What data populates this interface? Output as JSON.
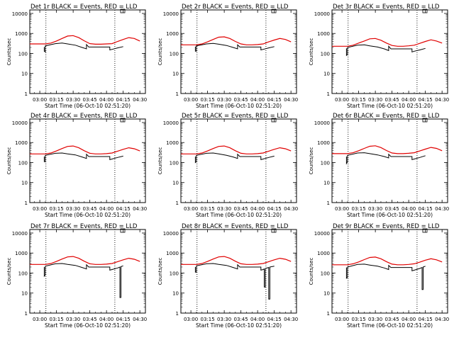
{
  "figure": {
    "xlabel": "Start Time (06-Oct-10 02:51:20)",
    "ylabel": "Counts/sec",
    "x_tick_labels": [
      "03:00",
      "03:15",
      "03:30",
      "03:45",
      "04:00",
      "04:15",
      "04:30"
    ],
    "y_tick_labels": [
      "1",
      "10",
      "100",
      "1000",
      "10000"
    ],
    "colors": {
      "events": "#000000",
      "lld": "#e00000",
      "axes": "#000000"
    }
  },
  "chart_data": [
    {
      "type": "line",
      "title": "Det 1r BLACK = Events, RED = LLD",
      "x_unit": "minutes after 03:00 (start 02:51:20)",
      "xlim": [
        -9,
        95
      ],
      "ylim": [
        1,
        15000
      ],
      "y_scale": "log",
      "vlines": [
        5.5,
        67.5
      ],
      "series": [
        {
          "name": "Events",
          "color": "#000000",
          "x": [
            -9,
            4,
            4,
            5,
            5,
            14,
            20,
            25,
            32,
            38,
            42,
            42,
            44,
            48,
            52,
            58,
            63,
            63,
            65,
            70,
            75
          ],
          "y": [
            null,
            210,
            130,
            120,
            240,
            310,
            330,
            300,
            260,
            200,
            170,
            280,
            210,
            210,
            210,
            210,
            210,
            150,
            160,
            190,
            220
          ]
        },
        {
          "name": "LLD",
          "color": "#e00000",
          "x": [
            -9,
            5,
            10,
            15,
            20,
            25,
            30,
            35,
            40,
            45,
            50,
            55,
            60,
            65,
            70,
            75,
            80,
            85,
            90
          ],
          "y": [
            300,
            300,
            330,
            420,
            560,
            740,
            780,
            620,
            430,
            310,
            290,
            290,
            300,
            310,
            400,
            500,
            620,
            560,
            420
          ]
        }
      ]
    },
    {
      "type": "line",
      "title": "Det 2r BLACK = Events, RED = LLD",
      "x_unit": "minutes after 03:00 (start 02:51:20)",
      "xlim": [
        -9,
        95
      ],
      "ylim": [
        1,
        15000
      ],
      "y_scale": "log",
      "vlines": [
        5.5,
        67.5
      ],
      "series": [
        {
          "name": "Events",
          "color": "#000000",
          "x": [
            4,
            4,
            5,
            5,
            14,
            20,
            25,
            32,
            38,
            42,
            42,
            44,
            48,
            52,
            58,
            63,
            63,
            65,
            70,
            75
          ],
          "y": [
            220,
            130,
            130,
            240,
            300,
            320,
            290,
            250,
            200,
            170,
            270,
            210,
            210,
            210,
            210,
            210,
            150,
            160,
            190,
            220
          ]
        },
        {
          "name": "LLD",
          "color": "#e00000",
          "x": [
            -9,
            5,
            10,
            15,
            20,
            25,
            30,
            35,
            40,
            45,
            50,
            55,
            60,
            65,
            70,
            75,
            80,
            85,
            90
          ],
          "y": [
            270,
            270,
            300,
            380,
            500,
            650,
            680,
            560,
            400,
            300,
            270,
            270,
            280,
            300,
            380,
            470,
            560,
            500,
            380
          ]
        }
      ]
    },
    {
      "type": "line",
      "title": "Det 3r BLACK = Events, RED = LLD",
      "x_unit": "minutes after 03:00 (start 02:51:20)",
      "xlim": [
        -9,
        95
      ],
      "ylim": [
        1,
        15000
      ],
      "y_scale": "log",
      "vlines": [
        5.5,
        67.5
      ],
      "series": [
        {
          "name": "Events",
          "color": "#000000",
          "x": [
            4,
            4,
            5,
            5,
            14,
            20,
            25,
            32,
            38,
            42,
            42,
            44,
            48,
            52,
            58,
            63,
            63,
            65,
            70,
            75
          ],
          "y": [
            180,
            80,
            90,
            200,
            260,
            270,
            240,
            210,
            170,
            140,
            230,
            170,
            170,
            170,
            170,
            170,
            120,
            130,
            150,
            180
          ]
        },
        {
          "name": "LLD",
          "color": "#e00000",
          "x": [
            -9,
            5,
            10,
            15,
            20,
            25,
            30,
            35,
            40,
            45,
            50,
            55,
            60,
            65,
            70,
            75,
            80,
            85,
            90
          ],
          "y": [
            230,
            230,
            260,
            330,
            420,
            540,
            560,
            460,
            330,
            250,
            230,
            230,
            240,
            260,
            320,
            400,
            480,
            420,
            330
          ]
        }
      ]
    },
    {
      "type": "line",
      "title": "Det 4r BLACK = Events, RED = LLD",
      "x_unit": "minutes after 03:00 (start 02:51:20)",
      "xlim": [
        -9,
        95
      ],
      "ylim": [
        1,
        15000
      ],
      "y_scale": "log",
      "vlines": [
        5.5,
        67.5
      ],
      "series": [
        {
          "name": "Events",
          "color": "#000000",
          "x": [
            4,
            4,
            5,
            5,
            14,
            20,
            25,
            32,
            38,
            42,
            42,
            44,
            48,
            52,
            58,
            63,
            63,
            65,
            70,
            75
          ],
          "y": [
            200,
            110,
            110,
            230,
            290,
            300,
            270,
            240,
            190,
            160,
            260,
            200,
            200,
            200,
            200,
            200,
            140,
            150,
            180,
            210
          ]
        },
        {
          "name": "LLD",
          "color": "#e00000",
          "x": [
            -9,
            5,
            10,
            15,
            20,
            25,
            30,
            35,
            40,
            45,
            50,
            55,
            60,
            65,
            70,
            75,
            80,
            85,
            90
          ],
          "y": [
            270,
            270,
            300,
            380,
            500,
            640,
            670,
            550,
            390,
            290,
            270,
            270,
            280,
            300,
            370,
            460,
            550,
            490,
            380
          ]
        }
      ]
    },
    {
      "type": "line",
      "title": "Det 5r BLACK = Events, RED = LLD",
      "x_unit": "minutes after 03:00 (start 02:51:20)",
      "xlim": [
        -9,
        95
      ],
      "ylim": [
        1,
        15000
      ],
      "y_scale": "log",
      "vlines": [
        5.5,
        67.5
      ],
      "series": [
        {
          "name": "Events",
          "color": "#000000",
          "x": [
            4,
            4,
            5,
            5,
            14,
            20,
            25,
            32,
            38,
            42,
            42,
            44,
            48,
            52,
            58,
            63,
            63,
            65,
            70,
            75
          ],
          "y": [
            200,
            100,
            110,
            230,
            290,
            300,
            270,
            230,
            190,
            160,
            260,
            200,
            200,
            200,
            200,
            200,
            140,
            150,
            180,
            210
          ]
        },
        {
          "name": "LLD",
          "color": "#e00000",
          "x": [
            -9,
            5,
            10,
            15,
            20,
            25,
            30,
            35,
            40,
            45,
            50,
            55,
            60,
            65,
            70,
            75,
            80,
            85,
            90
          ],
          "y": [
            270,
            270,
            300,
            380,
            500,
            640,
            670,
            550,
            390,
            290,
            270,
            270,
            280,
            300,
            370,
            460,
            550,
            490,
            380
          ]
        }
      ]
    },
    {
      "type": "line",
      "title": "Det 6r BLACK = Events, RED = LLD",
      "x_unit": "minutes after 03:00 (start 02:51:20)",
      "xlim": [
        -9,
        95
      ],
      "ylim": [
        1,
        15000
      ],
      "y_scale": "log",
      "vlines": [
        5.5,
        67.5
      ],
      "series": [
        {
          "name": "Events",
          "color": "#000000",
          "x": [
            4,
            4,
            5,
            5,
            14,
            20,
            25,
            32,
            38,
            42,
            42,
            44,
            48,
            52,
            58,
            63,
            63,
            65,
            70,
            75
          ],
          "y": [
            200,
            90,
            110,
            230,
            300,
            310,
            280,
            240,
            200,
            170,
            260,
            200,
            200,
            200,
            200,
            200,
            140,
            150,
            180,
            220
          ]
        },
        {
          "name": "LLD",
          "color": "#e00000",
          "x": [
            -9,
            5,
            10,
            15,
            20,
            25,
            30,
            35,
            40,
            45,
            50,
            55,
            60,
            65,
            70,
            75,
            80,
            85,
            90
          ],
          "y": [
            280,
            280,
            310,
            390,
            510,
            650,
            690,
            560,
            400,
            300,
            280,
            280,
            290,
            310,
            380,
            470,
            570,
            510,
            390
          ]
        }
      ]
    },
    {
      "type": "line",
      "title": "Det 7r BLACK = Events, RED = LLD",
      "x_unit": "minutes after 03:00 (start 02:51:20)",
      "xlim": [
        -9,
        95
      ],
      "ylim": [
        1,
        15000
      ],
      "y_scale": "log",
      "vlines": [
        5.5,
        67.5
      ],
      "series": [
        {
          "name": "Events",
          "color": "#000000",
          "x": [
            4,
            4,
            5,
            5,
            14,
            20,
            25,
            32,
            38,
            42,
            42,
            44,
            48,
            52,
            58,
            63,
            63,
            65,
            70,
            72,
            72,
            73,
            73,
            75
          ],
          "y": [
            200,
            70,
            80,
            220,
            290,
            300,
            270,
            240,
            190,
            160,
            260,
            200,
            200,
            200,
            200,
            200,
            140,
            150,
            180,
            200,
            6,
            6,
            210,
            230
          ]
        },
        {
          "name": "LLD",
          "color": "#e00000",
          "x": [
            -9,
            5,
            10,
            15,
            20,
            25,
            30,
            35,
            40,
            45,
            50,
            55,
            60,
            65,
            70,
            75,
            80,
            85,
            90
          ],
          "y": [
            270,
            270,
            300,
            380,
            500,
            640,
            670,
            550,
            390,
            290,
            270,
            270,
            280,
            300,
            370,
            460,
            550,
            490,
            380
          ]
        }
      ]
    },
    {
      "type": "line",
      "title": "Det 8r BLACK = Events, RED = LLD",
      "x_unit": "minutes after 03:00 (start 02:51:20)",
      "xlim": [
        -9,
        95
      ],
      "ylim": [
        1,
        15000
      ],
      "y_scale": "log",
      "vlines": [
        5.5,
        67.5
      ],
      "series": [
        {
          "name": "Events",
          "color": "#000000",
          "x": [
            4,
            4,
            5,
            5,
            14,
            20,
            25,
            32,
            38,
            42,
            42,
            44,
            48,
            52,
            58,
            63,
            63,
            65,
            66,
            66,
            67,
            67,
            70,
            70,
            71,
            71,
            75
          ],
          "y": [
            200,
            110,
            110,
            230,
            290,
            300,
            270,
            240,
            190,
            160,
            260,
            200,
            200,
            200,
            200,
            200,
            140,
            150,
            160,
            20,
            20,
            170,
            190,
            5,
            5,
            200,
            220
          ]
        },
        {
          "name": "LLD",
          "color": "#e00000",
          "x": [
            -9,
            5,
            10,
            15,
            20,
            25,
            30,
            35,
            40,
            45,
            50,
            55,
            60,
            65,
            70,
            75,
            80,
            85,
            90
          ],
          "y": [
            270,
            270,
            300,
            380,
            500,
            640,
            670,
            550,
            390,
            290,
            270,
            270,
            280,
            300,
            370,
            460,
            550,
            490,
            380
          ]
        }
      ]
    },
    {
      "type": "line",
      "title": "Det 9r BLACK = Events, RED = LLD",
      "x_unit": "minutes after 03:00 (start 02:51:20)",
      "xlim": [
        -9,
        95
      ],
      "ylim": [
        1,
        15000
      ],
      "y_scale": "log",
      "vlines": [
        5.5,
        67.5
      ],
      "series": [
        {
          "name": "Events",
          "color": "#000000",
          "x": [
            4,
            4,
            5,
            5,
            14,
            20,
            25,
            32,
            38,
            42,
            42,
            44,
            48,
            52,
            58,
            63,
            63,
            65,
            70,
            72,
            72,
            73,
            73,
            75
          ],
          "y": [
            190,
            55,
            60,
            200,
            270,
            280,
            250,
            220,
            180,
            150,
            240,
            190,
            190,
            190,
            190,
            190,
            130,
            140,
            170,
            190,
            15,
            15,
            200,
            220
          ]
        },
        {
          "name": "LLD",
          "color": "#e00000",
          "x": [
            -9,
            5,
            10,
            15,
            20,
            25,
            30,
            35,
            40,
            45,
            50,
            55,
            60,
            65,
            70,
            75,
            80,
            85,
            90
          ],
          "y": [
            260,
            260,
            290,
            360,
            470,
            600,
            630,
            520,
            370,
            280,
            260,
            260,
            270,
            290,
            350,
            440,
            520,
            460,
            360
          ]
        }
      ]
    }
  ]
}
